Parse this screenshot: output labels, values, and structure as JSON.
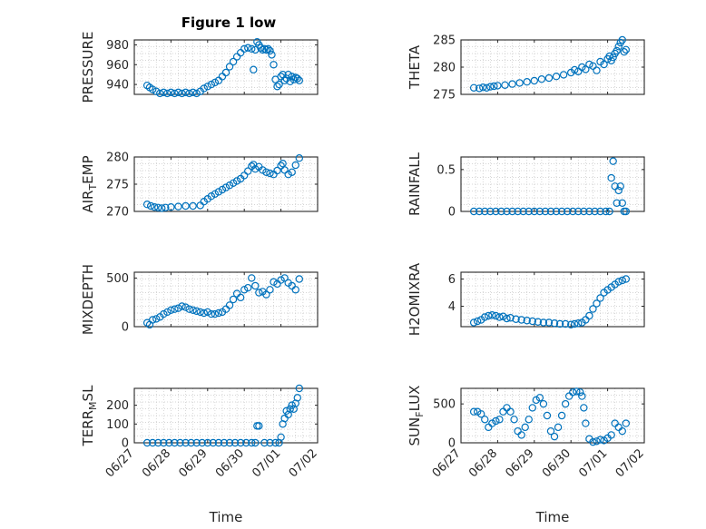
{
  "figure": {
    "title": "Figure 1 low",
    "marker_color": "#0072BD"
  },
  "chart_data": [
    {
      "type": "scatter",
      "ylabel": "PRESSURE",
      "xlabel": "",
      "xlim": [
        0,
        5
      ],
      "ylim": [
        930,
        985
      ],
      "yticks": [
        940,
        960,
        980
      ],
      "x": [
        0.35,
        0.42,
        0.5,
        0.6,
        0.7,
        0.8,
        0.9,
        1.0,
        1.1,
        1.2,
        1.3,
        1.4,
        1.5,
        1.6,
        1.7,
        1.8,
        1.9,
        2.0,
        2.1,
        2.2,
        2.3,
        2.4,
        2.5,
        2.6,
        2.7,
        2.8,
        2.9,
        3.0,
        3.1,
        3.2,
        3.25,
        3.3,
        3.35,
        3.4,
        3.45,
        3.5,
        3.55,
        3.6,
        3.65,
        3.7,
        3.75,
        3.8,
        3.85,
        3.9,
        3.95,
        4.0,
        4.05,
        4.1,
        4.15,
        4.2,
        4.25,
        4.3,
        4.35,
        4.4,
        4.45,
        4.5
      ],
      "y": [
        939,
        937,
        935,
        933,
        931,
        932,
        931,
        932,
        931,
        932,
        931,
        932,
        931,
        932,
        931,
        933,
        936,
        938,
        940,
        942,
        944,
        948,
        952,
        958,
        963,
        968,
        972,
        976,
        977,
        976,
        955,
        975,
        983,
        980,
        977,
        975,
        976,
        975,
        976,
        974,
        970,
        960,
        945,
        938,
        940,
        948,
        950,
        944,
        946,
        950,
        943,
        948,
        945,
        947,
        946,
        944
      ]
    },
    {
      "type": "scatter",
      "ylabel": "THETA",
      "xlabel": "",
      "xlim": [
        0,
        5
      ],
      "ylim": [
        275,
        285
      ],
      "yticks": [
        275,
        280,
        285
      ],
      "x": [
        0.35,
        0.5,
        0.6,
        0.7,
        0.8,
        0.9,
        1.0,
        1.2,
        1.4,
        1.6,
        1.8,
        2.0,
        2.2,
        2.4,
        2.6,
        2.8,
        3.0,
        3.1,
        3.2,
        3.3,
        3.4,
        3.5,
        3.6,
        3.7,
        3.8,
        3.9,
        4.0,
        4.05,
        4.1,
        4.15,
        4.2,
        4.25,
        4.3,
        4.35,
        4.4,
        4.45,
        4.5
      ],
      "y": [
        276.2,
        276.1,
        276.3,
        276.2,
        276.4,
        276.5,
        276.6,
        276.7,
        276.9,
        277.1,
        277.3,
        277.5,
        277.8,
        278.0,
        278.3,
        278.6,
        279.0,
        279.5,
        279.2,
        280.0,
        279.6,
        280.5,
        280.2,
        279.4,
        281.0,
        280.5,
        281.5,
        282.0,
        281.2,
        281.8,
        282.5,
        283.0,
        283.8,
        284.5,
        285.0,
        282.8,
        283.2
      ]
    },
    {
      "type": "scatter",
      "ylabel": "AIR_TEMP",
      "xlabel": "",
      "xlim": [
        0,
        5
      ],
      "ylim": [
        270,
        280
      ],
      "yticks": [
        270,
        275,
        280
      ],
      "x": [
        0.35,
        0.45,
        0.55,
        0.65,
        0.75,
        0.85,
        1.0,
        1.2,
        1.4,
        1.6,
        1.8,
        1.9,
        2.0,
        2.1,
        2.2,
        2.3,
        2.4,
        2.5,
        2.6,
        2.7,
        2.8,
        2.9,
        3.0,
        3.1,
        3.2,
        3.25,
        3.3,
        3.4,
        3.5,
        3.6,
        3.7,
        3.8,
        3.9,
        4.0,
        4.05,
        4.1,
        4.2,
        4.3,
        4.4,
        4.5
      ],
      "y": [
        271.3,
        271.0,
        270.8,
        270.7,
        270.6,
        270.7,
        270.8,
        270.9,
        271.0,
        271.0,
        271.1,
        271.8,
        272.3,
        272.8,
        273.2,
        273.6,
        274.0,
        274.4,
        274.8,
        275.2,
        275.6,
        276.0,
        276.6,
        277.4,
        278.3,
        278.6,
        277.8,
        278.2,
        277.6,
        277.2,
        277.0,
        276.8,
        277.5,
        278.4,
        278.8,
        277.6,
        276.8,
        277.2,
        278.5,
        279.8
      ]
    },
    {
      "type": "scatter",
      "ylabel": "RAINFALL",
      "xlabel": "",
      "xlim": [
        0,
        5
      ],
      "ylim": [
        0,
        0.65
      ],
      "yticks": [
        0,
        0.5
      ],
      "x": [
        0.35,
        0.5,
        0.65,
        0.8,
        0.95,
        1.1,
        1.25,
        1.4,
        1.55,
        1.7,
        1.85,
        2.0,
        2.15,
        2.3,
        2.45,
        2.6,
        2.75,
        2.9,
        3.05,
        3.2,
        3.35,
        3.5,
        3.65,
        3.8,
        3.95,
        4.05,
        4.1,
        4.15,
        4.2,
        4.25,
        4.3,
        4.35,
        4.4,
        4.45,
        4.5
      ],
      "y": [
        0,
        0,
        0,
        0,
        0,
        0,
        0,
        0,
        0,
        0,
        0,
        0,
        0,
        0,
        0,
        0,
        0,
        0,
        0,
        0,
        0,
        0,
        0,
        0,
        0,
        0,
        0.4,
        0.6,
        0.3,
        0.1,
        0.25,
        0.3,
        0.1,
        0,
        0
      ]
    },
    {
      "type": "scatter",
      "ylabel": "MIXDEPTH",
      "xlabel": "",
      "xlim": [
        0,
        5
      ],
      "ylim": [
        0,
        560
      ],
      "yticks": [
        0,
        500
      ],
      "x": [
        0.35,
        0.42,
        0.5,
        0.6,
        0.7,
        0.8,
        0.9,
        1.0,
        1.1,
        1.2,
        1.3,
        1.4,
        1.5,
        1.6,
        1.7,
        1.8,
        1.9,
        2.0,
        2.1,
        2.2,
        2.3,
        2.4,
        2.5,
        2.6,
        2.7,
        2.8,
        2.9,
        3.0,
        3.1,
        3.2,
        3.3,
        3.4,
        3.5,
        3.6,
        3.7,
        3.8,
        3.9,
        4.0,
        4.1,
        4.2,
        4.3,
        4.4,
        4.5
      ],
      "y": [
        40,
        20,
        70,
        80,
        100,
        130,
        150,
        170,
        180,
        190,
        210,
        200,
        180,
        170,
        160,
        150,
        140,
        150,
        130,
        130,
        140,
        150,
        180,
        220,
        280,
        340,
        300,
        380,
        400,
        500,
        420,
        350,
        360,
        330,
        380,
        460,
        440,
        480,
        500,
        450,
        420,
        380,
        490
      ]
    },
    {
      "type": "scatter",
      "ylabel": "H2OMIXRA",
      "xlabel": "",
      "xlim": [
        0,
        5
      ],
      "ylim": [
        2.5,
        6.5
      ],
      "yticks": [
        4,
        6
      ],
      "x": [
        0.35,
        0.45,
        0.55,
        0.65,
        0.75,
        0.85,
        0.95,
        1.05,
        1.15,
        1.25,
        1.35,
        1.5,
        1.65,
        1.8,
        1.95,
        2.1,
        2.25,
        2.4,
        2.55,
        2.7,
        2.85,
        3.0,
        3.1,
        3.2,
        3.3,
        3.4,
        3.5,
        3.6,
        3.7,
        3.8,
        3.9,
        4.0,
        4.1,
        4.2,
        4.3,
        4.4,
        4.5
      ],
      "y": [
        2.8,
        2.9,
        3.0,
        3.2,
        3.3,
        3.35,
        3.3,
        3.2,
        3.25,
        3.1,
        3.15,
        3.05,
        3.0,
        2.95,
        2.9,
        2.85,
        2.8,
        2.8,
        2.75,
        2.7,
        2.7,
        2.65,
        2.7,
        2.75,
        2.8,
        3.0,
        3.3,
        3.8,
        4.2,
        4.6,
        5.0,
        5.2,
        5.4,
        5.6,
        5.8,
        5.9,
        6.0
      ]
    },
    {
      "type": "scatter",
      "ylabel": "TERR_MSL",
      "xlabel": "Time",
      "xlim": [
        0,
        5
      ],
      "ylim": [
        0,
        290
      ],
      "yticks": [
        0,
        100,
        200
      ],
      "xticklabels": [
        "06/27",
        "06/28",
        "06/29",
        "06/30",
        "07/01",
        "07/02"
      ],
      "x": [
        0.35,
        0.5,
        0.65,
        0.8,
        0.95,
        1.1,
        1.25,
        1.4,
        1.55,
        1.7,
        1.85,
        2.0,
        2.15,
        2.3,
        2.45,
        2.6,
        2.75,
        2.9,
        3.05,
        3.2,
        3.3,
        3.35,
        3.4,
        3.55,
        3.7,
        3.85,
        3.95,
        4.0,
        4.05,
        4.1,
        4.15,
        4.2,
        4.25,
        4.3,
        4.35,
        4.4,
        4.45,
        4.5
      ],
      "y": [
        0,
        0,
        0,
        0,
        0,
        0,
        0,
        0,
        0,
        0,
        0,
        0,
        0,
        0,
        0,
        0,
        0,
        0,
        0,
        0,
        0,
        90,
        90,
        0,
        0,
        0,
        0,
        30,
        100,
        130,
        170,
        150,
        180,
        200,
        180,
        210,
        240,
        290
      ]
    },
    {
      "type": "scatter",
      "ylabel": "SUN_FLUX",
      "xlabel": "Time",
      "xlim": [
        0,
        5
      ],
      "ylim": [
        0,
        700
      ],
      "yticks": [
        0,
        500
      ],
      "xticklabels": [
        "06/27",
        "06/28",
        "06/29",
        "06/30",
        "07/01",
        "07/02"
      ],
      "x": [
        0.35,
        0.45,
        0.55,
        0.65,
        0.75,
        0.85,
        0.95,
        1.05,
        1.15,
        1.25,
        1.35,
        1.45,
        1.55,
        1.65,
        1.75,
        1.85,
        1.95,
        2.05,
        2.15,
        2.25,
        2.35,
        2.45,
        2.55,
        2.65,
        2.75,
        2.85,
        2.95,
        3.05,
        3.15,
        3.25,
        3.3,
        3.35,
        3.4,
        3.5,
        3.6,
        3.7,
        3.8,
        3.9,
        4.0,
        4.1,
        4.2,
        4.3,
        4.4,
        4.5
      ],
      "y": [
        400,
        400,
        370,
        300,
        200,
        250,
        280,
        300,
        400,
        450,
        400,
        300,
        150,
        100,
        200,
        300,
        450,
        550,
        580,
        500,
        350,
        150,
        80,
        200,
        350,
        500,
        600,
        650,
        660,
        650,
        600,
        450,
        250,
        50,
        10,
        20,
        40,
        30,
        60,
        100,
        250,
        200,
        150,
        250
      ]
    }
  ]
}
